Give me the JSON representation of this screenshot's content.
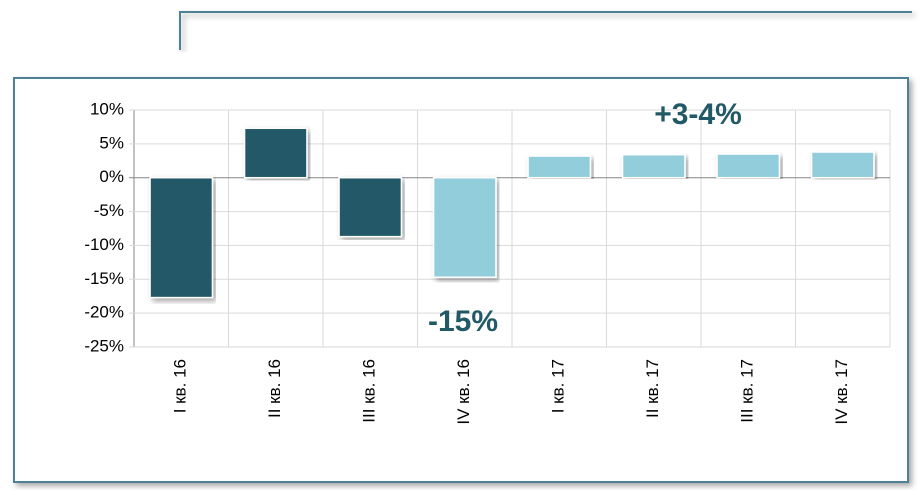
{
  "chart_data": {
    "type": "bar",
    "categories": [
      "I кв. 16",
      "II кв. 16",
      "III кв. 16",
      "IV кв. 16",
      "I кв. 17",
      "II кв. 17",
      "III кв. 17",
      "IV кв. 17"
    ],
    "values": [
      -17.7,
      7.3,
      -8.7,
      -14.7,
      3.2,
      3.4,
      3.5,
      3.8
    ],
    "colors": [
      "#215967",
      "#215967",
      "#215967",
      "#92cddc",
      "#92cddc",
      "#92cddc",
      "#92cddc",
      "#92cddc"
    ],
    "ylim": [
      -25,
      10
    ],
    "yticks": [
      {
        "value": -25,
        "label": "-25%"
      },
      {
        "value": -20,
        "label": "-20%"
      },
      {
        "value": -15,
        "label": "-15%"
      },
      {
        "value": -10,
        "label": "-10%"
      },
      {
        "value": -5,
        "label": "-5%"
      },
      {
        "value": 0,
        "label": "0%"
      },
      {
        "value": 5,
        "label": "5%"
      },
      {
        "value": 10,
        "label": "10%"
      }
    ],
    "grid": true,
    "annotations": [
      "+3-4%",
      "-15%"
    ]
  }
}
